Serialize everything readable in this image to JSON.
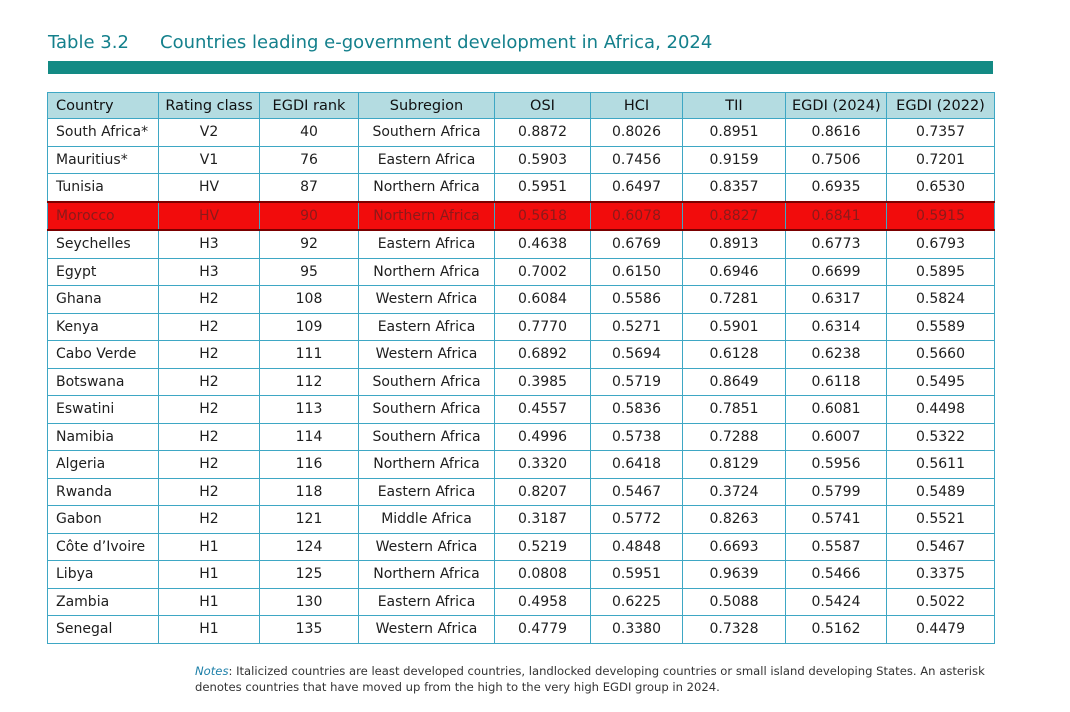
{
  "caption": {
    "number": "Table 3.2",
    "title": "Countries leading e-government development in Africa, 2024"
  },
  "table": {
    "columns": [
      "Country",
      "Rating class",
      "EGDI rank",
      "Subregion",
      "OSI",
      "HCI",
      "TII",
      "EGDI (2024)",
      "EGDI  (2022)"
    ],
    "highlight_color": "#f20c0c",
    "rows": [
      {
        "country": "South Africa*",
        "rating": "V2",
        "rank": "40",
        "subregion": "Southern Africa",
        "osi": "0.8872",
        "hci": "0.8026",
        "tii": "0.8951",
        "egdi2024": "0.8616",
        "egdi2022": "0.7357"
      },
      {
        "country": "Mauritius*",
        "rating": "V1",
        "rank": "76",
        "subregion": "Eastern Africa",
        "osi": "0.5903",
        "hci": "0.7456",
        "tii": "0.9159",
        "egdi2024": "0.7506",
        "egdi2022": "0.7201"
      },
      {
        "country": "Tunisia",
        "rating": "HV",
        "rank": "87",
        "subregion": "Northern Africa",
        "osi": "0.5951",
        "hci": "0.6497",
        "tii": "0.8357",
        "egdi2024": "0.6935",
        "egdi2022": "0.6530"
      },
      {
        "country": "Morocco",
        "rating": "HV",
        "rank": "90",
        "subregion": "Northern Africa",
        "osi": "0.5618",
        "hci": "0.6078",
        "tii": "0.8827",
        "egdi2024": "0.6841",
        "egdi2022": "0.5915",
        "highlighted": true
      },
      {
        "country": "Seychelles",
        "rating": "H3",
        "rank": "92",
        "subregion": "Eastern Africa",
        "osi": "0.4638",
        "hci": "0.6769",
        "tii": "0.8913",
        "egdi2024": "0.6773",
        "egdi2022": "0.6793"
      },
      {
        "country": "Egypt",
        "rating": "H3",
        "rank": "95",
        "subregion": "Northern Africa",
        "osi": "0.7002",
        "hci": "0.6150",
        "tii": "0.6946",
        "egdi2024": "0.6699",
        "egdi2022": "0.5895"
      },
      {
        "country": "Ghana",
        "rating": "H2",
        "rank": "108",
        "subregion": "Western Africa",
        "osi": "0.6084",
        "hci": "0.5586",
        "tii": "0.7281",
        "egdi2024": "0.6317",
        "egdi2022": "0.5824"
      },
      {
        "country": "Kenya",
        "rating": "H2",
        "rank": "109",
        "subregion": "Eastern Africa",
        "osi": "0.7770",
        "hci": "0.5271",
        "tii": "0.5901",
        "egdi2024": "0.6314",
        "egdi2022": "0.5589"
      },
      {
        "country": "Cabo Verde",
        "rating": "H2",
        "rank": "111",
        "subregion": "Western Africa",
        "osi": "0.6892",
        "hci": "0.5694",
        "tii": "0.6128",
        "egdi2024": "0.6238",
        "egdi2022": "0.5660"
      },
      {
        "country": "Botswana",
        "rating": "H2",
        "rank": "112",
        "subregion": "Southern Africa",
        "osi": "0.3985",
        "hci": "0.5719",
        "tii": "0.8649",
        "egdi2024": "0.6118",
        "egdi2022": "0.5495"
      },
      {
        "country": "Eswatini",
        "rating": "H2",
        "rank": "113",
        "subregion": "Southern Africa",
        "osi": "0.4557",
        "hci": "0.5836",
        "tii": "0.7851",
        "egdi2024": "0.6081",
        "egdi2022": "0.4498"
      },
      {
        "country": "Namibia",
        "rating": "H2",
        "rank": "114",
        "subregion": "Southern Africa",
        "osi": "0.4996",
        "hci": "0.5738",
        "tii": "0.7288",
        "egdi2024": "0.6007",
        "egdi2022": "0.5322"
      },
      {
        "country": "Algeria",
        "rating": "H2",
        "rank": "116",
        "subregion": "Northern Africa",
        "osi": "0.3320",
        "hci": "0.6418",
        "tii": "0.8129",
        "egdi2024": "0.5956",
        "egdi2022": "0.5611"
      },
      {
        "country": "Rwanda",
        "rating": "H2",
        "rank": "118",
        "subregion": "Eastern Africa",
        "osi": "0.8207",
        "hci": "0.5467",
        "tii": "0.3724",
        "egdi2024": "0.5799",
        "egdi2022": "0.5489"
      },
      {
        "country": "Gabon",
        "rating": "H2",
        "rank": "121",
        "subregion": "Middle Africa",
        "osi": "0.3187",
        "hci": "0.5772",
        "tii": "0.8263",
        "egdi2024": "0.5741",
        "egdi2022": "0.5521"
      },
      {
        "country": "Côte d’Ivoire",
        "rating": "H1",
        "rank": "124",
        "subregion": "Western Africa",
        "osi": "0.5219",
        "hci": "0.4848",
        "tii": "0.6693",
        "egdi2024": "0.5587",
        "egdi2022": "0.5467"
      },
      {
        "country": "Libya",
        "rating": "H1",
        "rank": "125",
        "subregion": "Northern Africa",
        "osi": "0.0808",
        "hci": "0.5951",
        "tii": "0.9639",
        "egdi2024": "0.5466",
        "egdi2022": "0.3375"
      },
      {
        "country": "Zambia",
        "rating": "H1",
        "rank": "130",
        "subregion": "Eastern Africa",
        "osi": "0.4958",
        "hci": "0.6225",
        "tii": "0.5088",
        "egdi2024": "0.5424",
        "egdi2022": "0.5022"
      },
      {
        "country": "Senegal",
        "rating": "H1",
        "rank": "135",
        "subregion": "Western Africa",
        "osi": "0.4779",
        "hci": "0.3380",
        "tii": "0.7328",
        "egdi2024": "0.5162",
        "egdi2022": "0.4479"
      }
    ]
  },
  "notes": {
    "label": "Notes",
    "text": ": Italicized countries are least developed countries, landlocked developing countries or small island developing States. An asterisk denotes countries that have moved up from the high to the very high EGDI group in 2024."
  }
}
